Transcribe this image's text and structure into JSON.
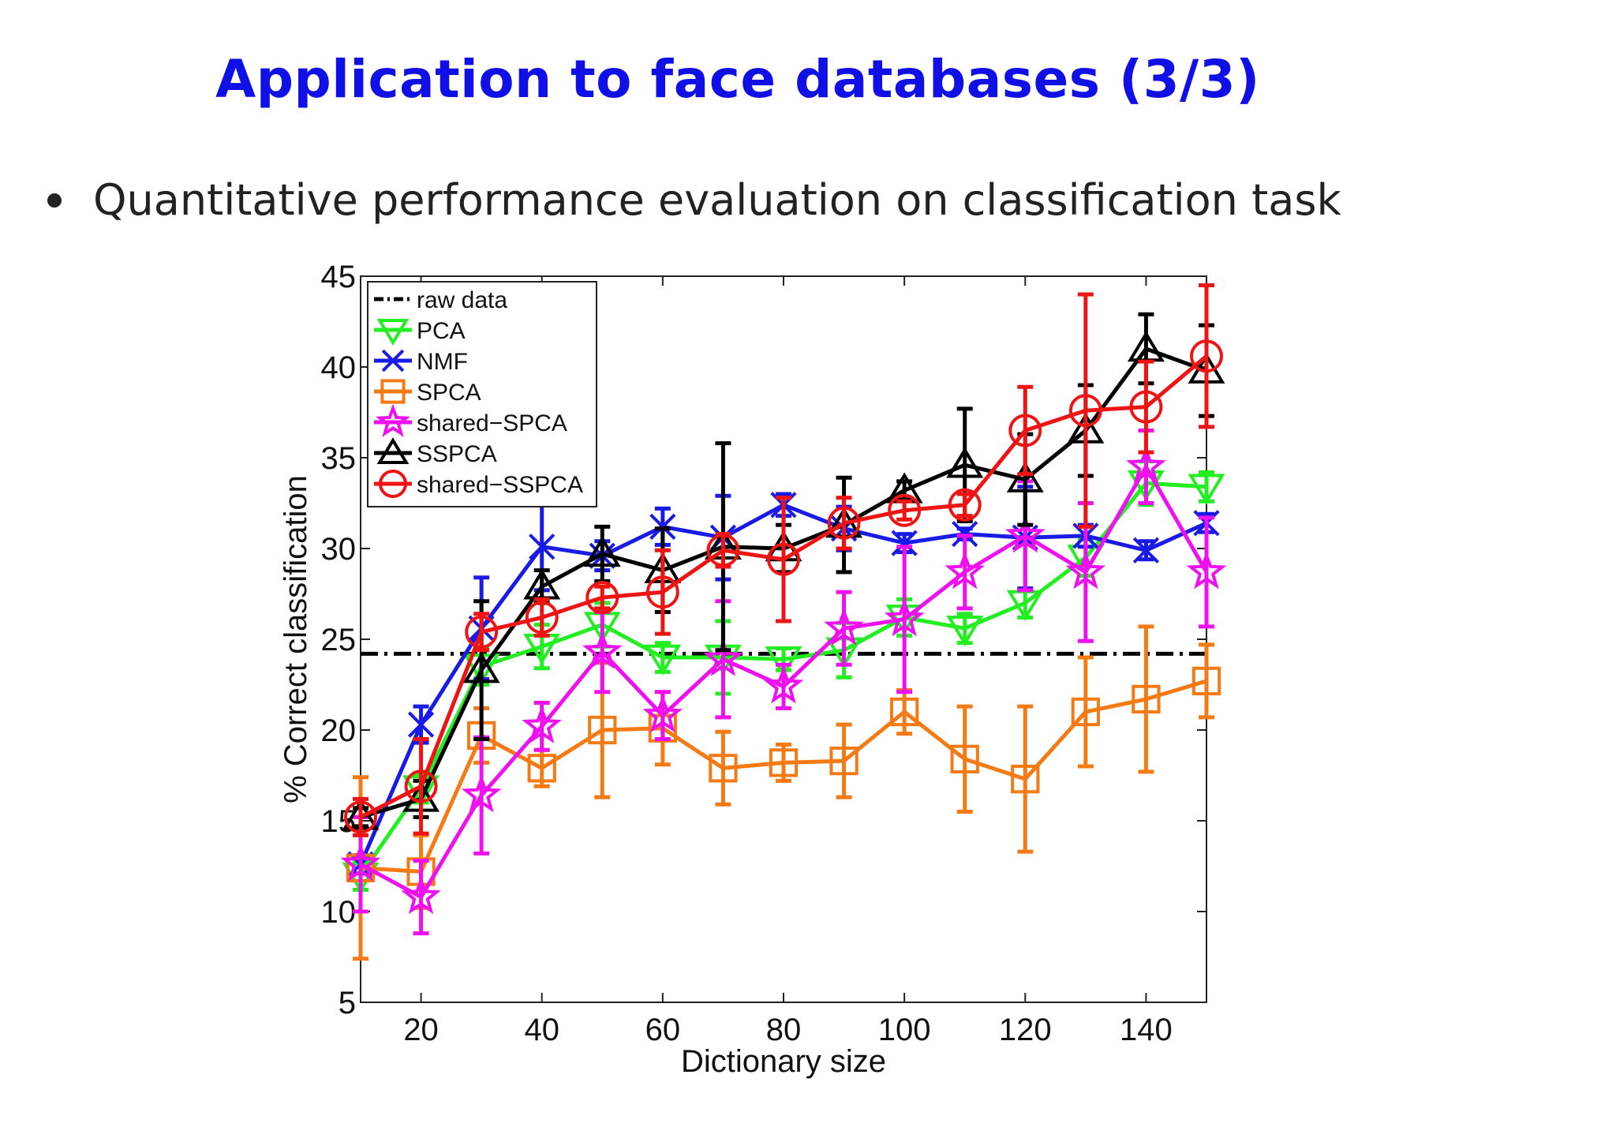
{
  "slide": {
    "title": "Application to face databases (3/3)",
    "bullet": "Quantitative performance evaluation on classification task"
  },
  "chart_data": {
    "type": "line",
    "xlabel": "Dictionary size",
    "ylabel": "% Correct classification",
    "xlim": [
      10,
      150
    ],
    "ylim": [
      5,
      45
    ],
    "xticks": [
      20,
      40,
      60,
      80,
      100,
      120,
      140
    ],
    "yticks": [
      5,
      10,
      15,
      20,
      25,
      30,
      35,
      40,
      45
    ],
    "grid": false,
    "legend_position": "top-left",
    "x": [
      10,
      20,
      30,
      40,
      50,
      60,
      70,
      80,
      90,
      100,
      110,
      120,
      130,
      140,
      150
    ],
    "series": [
      {
        "name": "raw data",
        "color": "#000000",
        "marker": "none",
        "style": "dash-dot",
        "values": [
          24.2,
          24.2,
          24.2,
          24.2,
          24.2,
          24.2,
          24.2,
          24.2,
          24.2,
          24.2,
          24.2,
          24.2,
          24.2,
          24.2,
          24.2
        ],
        "errors": []
      },
      {
        "name": "PCA",
        "color": "#22ee22",
        "marker": "triangle-down",
        "style": "solid",
        "values": [
          12.0,
          16.8,
          23.5,
          24.6,
          25.8,
          24.0,
          24.0,
          23.9,
          24.4,
          26.2,
          25.6,
          27.0,
          29.5,
          33.6,
          33.4
        ],
        "errors": [
          0.8,
          0.8,
          1.0,
          1.2,
          1.2,
          0.8,
          2.0,
          0.6,
          1.5,
          1.0,
          0.8,
          0.8,
          1.0,
          1.2,
          0.8
        ]
      },
      {
        "name": "NMF",
        "color": "#1a1ae6",
        "marker": "x",
        "style": "solid",
        "values": [
          12.6,
          20.3,
          25.6,
          30.1,
          29.6,
          31.2,
          30.6,
          32.4,
          31.1,
          30.3,
          30.8,
          30.6,
          30.7,
          29.9,
          31.4
        ],
        "errors": [
          0.5,
          1.0,
          2.8,
          2.4,
          0.8,
          1.0,
          2.3,
          0.6,
          1.2,
          0.5,
          0.3,
          2.8,
          0.6,
          0.5,
          0.5
        ]
      },
      {
        "name": "SPCA",
        "color": "#f57a14",
        "marker": "square",
        "style": "solid",
        "values": [
          12.4,
          12.2,
          19.7,
          17.9,
          20.0,
          20.1,
          17.9,
          18.2,
          18.3,
          21.0,
          18.4,
          17.3,
          21.0,
          21.7,
          22.7
        ],
        "errors": [
          5.0,
          2.0,
          1.5,
          1.0,
          3.7,
          2.0,
          2.0,
          1.0,
          2.0,
          1.2,
          2.9,
          4.0,
          3.0,
          4.0,
          2.0
        ]
      },
      {
        "name": "shared−SPCA",
        "color": "#ee10ee",
        "marker": "star",
        "style": "solid",
        "values": [
          12.6,
          10.8,
          16.4,
          20.2,
          24.3,
          20.8,
          23.9,
          22.4,
          25.6,
          26.1,
          28.7,
          30.7,
          28.7,
          34.5,
          28.7
        ],
        "errors": [
          2.6,
          2.0,
          3.2,
          1.3,
          2.2,
          1.3,
          3.2,
          1.2,
          2.0,
          4.0,
          2.0,
          3.0,
          3.8,
          2.0,
          3.0
        ]
      },
      {
        "name": "SSPCA",
        "color": "#000000",
        "marker": "triangle-up",
        "style": "solid",
        "values": [
          15.2,
          16.2,
          23.3,
          27.9,
          29.7,
          28.8,
          30.1,
          30.0,
          31.3,
          33.2,
          34.6,
          33.8,
          36.5,
          41.0,
          39.8
        ],
        "errors": [
          0.5,
          1.0,
          3.8,
          0.9,
          1.5,
          2.3,
          5.7,
          1.3,
          2.6,
          0.5,
          3.1,
          2.5,
          2.5,
          1.9,
          2.5
        ]
      },
      {
        "name": "shared−SSPCA",
        "color": "#ee1414",
        "marker": "circle",
        "style": "solid",
        "values": [
          15.2,
          16.9,
          25.4,
          26.2,
          27.3,
          27.6,
          29.9,
          29.4,
          31.4,
          32.1,
          32.4,
          36.5,
          37.6,
          37.8,
          40.6
        ],
        "errors": [
          1.0,
          2.6,
          1.0,
          1.0,
          0.6,
          2.3,
          0.9,
          3.4,
          1.4,
          0.5,
          0.6,
          2.4,
          6.4,
          2.5,
          3.9
        ]
      }
    ]
  }
}
